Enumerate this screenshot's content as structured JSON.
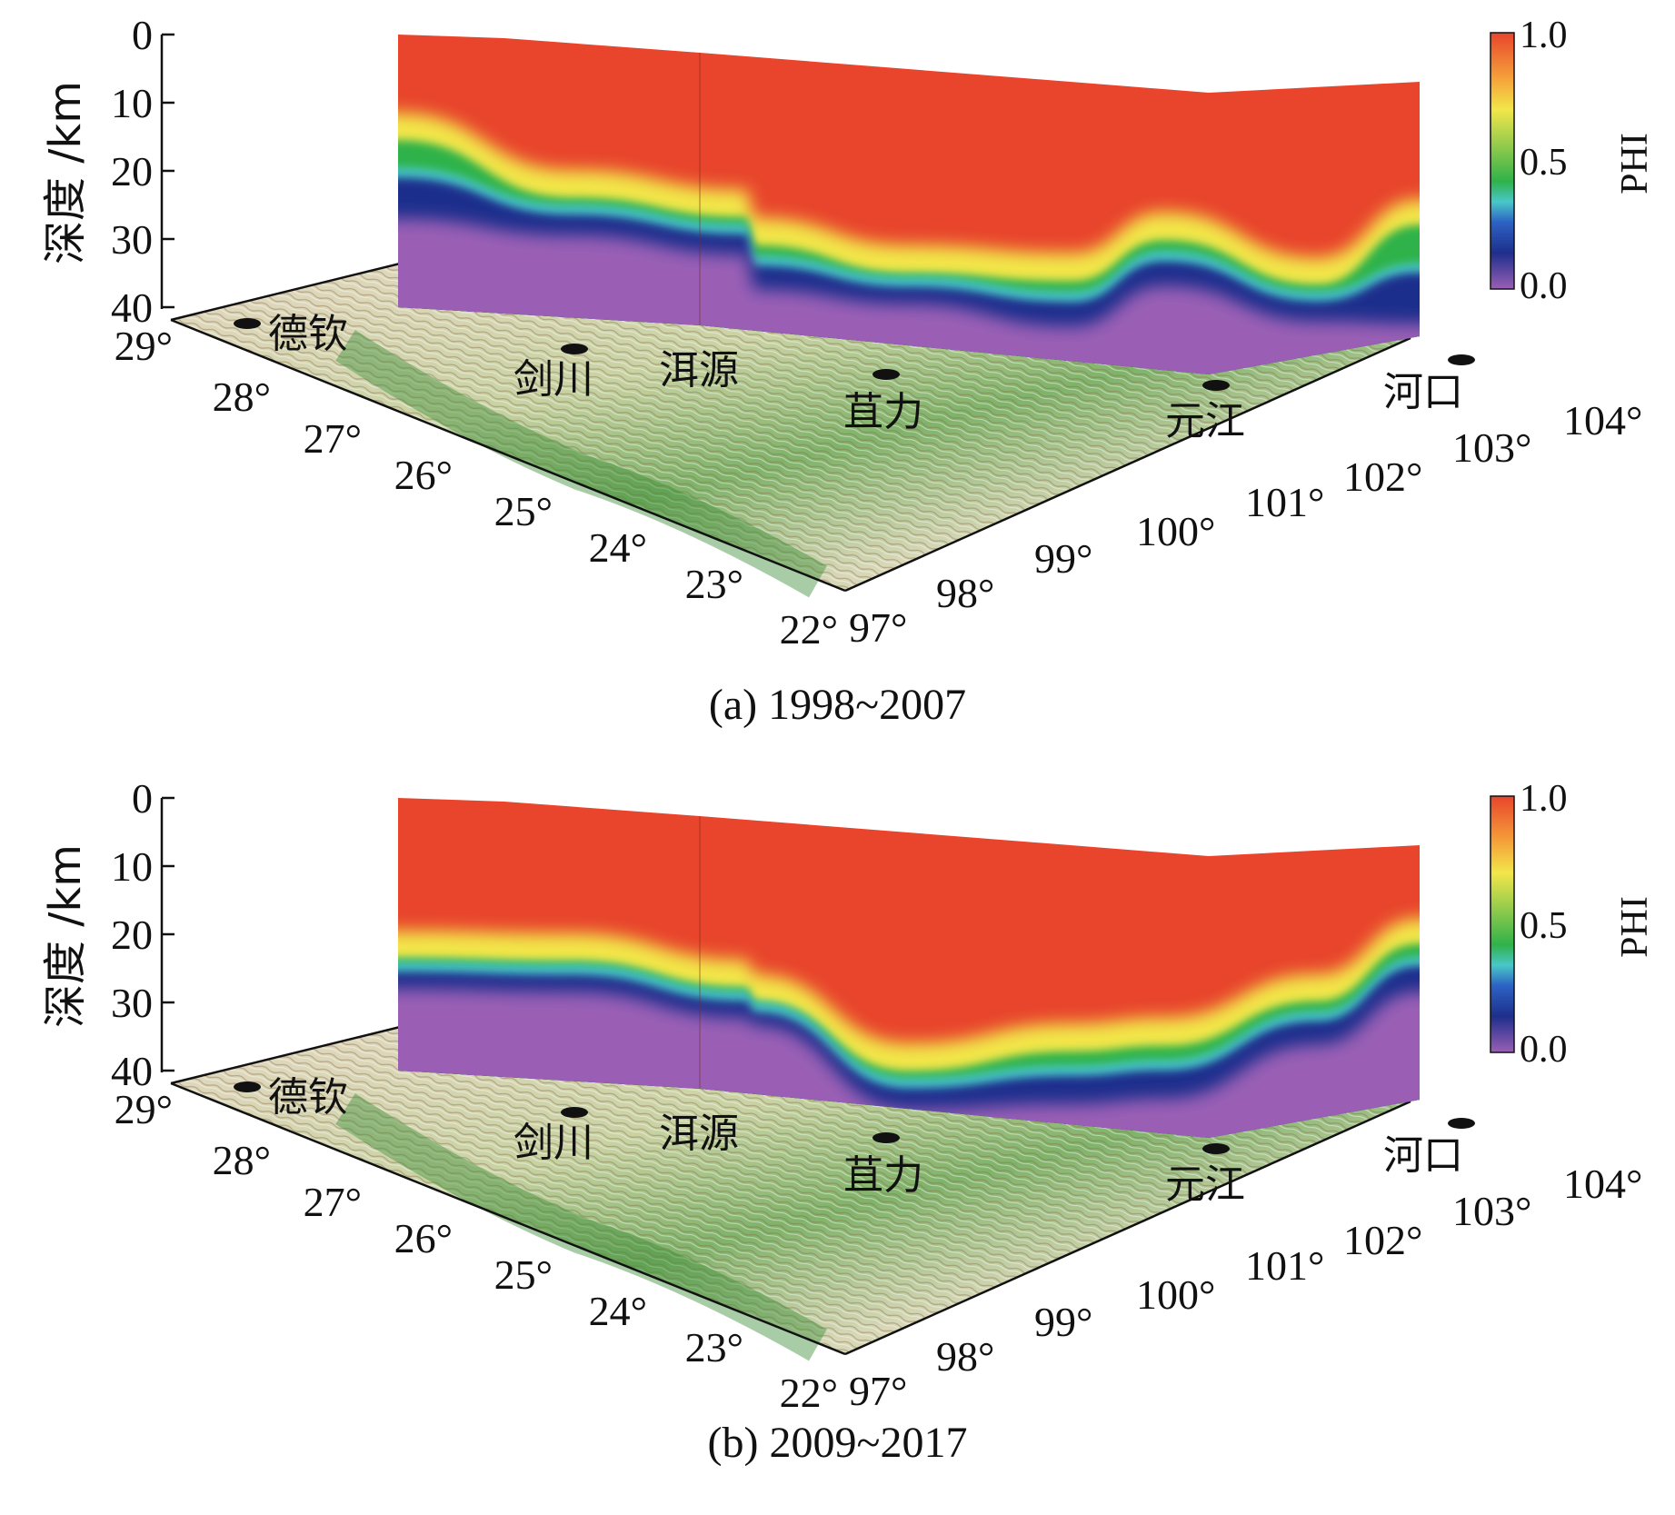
{
  "figure": {
    "panels": [
      {
        "caption": "(a) 1998~2007",
        "yaxis": {
          "label": "深度 /km",
          "ticks": [
            "0",
            "10",
            "20",
            "30",
            "40"
          ]
        },
        "lat_ticks": [
          "29°",
          "28°",
          "27°",
          "26°",
          "25°",
          "24°",
          "23°",
          "22°"
        ],
        "lon_ticks": [
          "97°",
          "98°",
          "99°",
          "100°",
          "101°",
          "102°",
          "103°",
          "104°"
        ],
        "stations": [
          "德钦",
          "剑川",
          "洱源",
          "苴力",
          "元江",
          "河口"
        ],
        "colorbar": {
          "label": "PHI",
          "ticks": [
            "1.0",
            "0.5",
            "0.0"
          ]
        }
      },
      {
        "caption": "(b) 2009~2017",
        "yaxis": {
          "label": "深度 /km",
          "ticks": [
            "0",
            "10",
            "20",
            "30",
            "40"
          ]
        },
        "lat_ticks": [
          "29°",
          "28°",
          "27°",
          "26°",
          "25°",
          "24°",
          "23°",
          "22°"
        ],
        "lon_ticks": [
          "97°",
          "98°",
          "99°",
          "100°",
          "101°",
          "102°",
          "103°",
          "104°"
        ],
        "stations": [
          "德钦",
          "剑川",
          "洱源",
          "苴力",
          "元江",
          "河口"
        ],
        "colorbar": {
          "label": "PHI",
          "ticks": [
            "1.0",
            "0.5",
            "0.0"
          ]
        }
      }
    ]
  },
  "chart_data": [
    {
      "type": "heatmap",
      "title": "(a) 1998~2007",
      "ylabel": "深度 /km",
      "ylim": [
        0,
        40
      ],
      "zlabel": "PHI",
      "zlim": [
        0,
        1
      ],
      "profile_stations": [
        "德钦",
        "剑川",
        "洱源",
        "苴力",
        "元江",
        "河口"
      ],
      "profile_position": [
        0,
        0.17,
        0.34,
        0.35,
        0.5,
        0.66,
        0.75,
        0.9,
        1.0
      ],
      "phi_transition_depth_km": [
        13,
        20,
        21,
        25,
        27,
        26,
        19,
        27,
        20
      ],
      "low_phi_depth_km": [
        26,
        27,
        28,
        33,
        33,
        34,
        27,
        34,
        37
      ],
      "colors": {
        "high": "#e8452c",
        "mid": "#2fb24a",
        "low": "#1e2f8c",
        "lowest": "#9a5fb5"
      }
    },
    {
      "type": "heatmap",
      "title": "(b) 2009~2017",
      "ylabel": "深度 /km",
      "ylim": [
        0,
        40
      ],
      "zlabel": "PHI",
      "zlim": [
        0,
        1
      ],
      "profile_stations": [
        "德钦",
        "剑川",
        "洱源",
        "苴力",
        "元江",
        "河口"
      ],
      "profile_position": [
        0,
        0.17,
        0.34,
        0.35,
        0.5,
        0.66,
        0.75,
        0.9,
        1.0
      ],
      "phi_transition_depth_km": [
        21,
        20,
        22,
        24,
        32,
        27,
        25,
        20,
        13
      ],
      "low_phi_depth_km": [
        27,
        26,
        28,
        29,
        39,
        36,
        34,
        28,
        22
      ],
      "colors": {
        "high": "#e8452c",
        "mid": "#2fb24a",
        "low": "#1e2f8c",
        "lowest": "#9a5fb5"
      }
    }
  ]
}
